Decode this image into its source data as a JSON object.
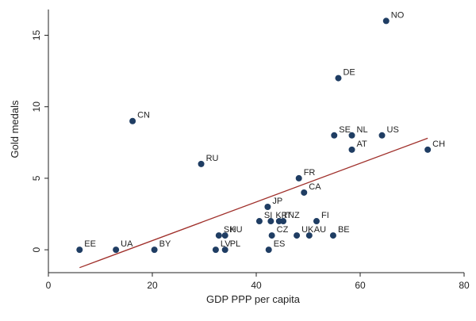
{
  "chart_data": {
    "type": "scatter",
    "title": "",
    "xlabel": "GDP PPP per capita",
    "ylabel": "Gold medals",
    "xlim": [
      0,
      80
    ],
    "ylim": [
      -1.6,
      16.8
    ],
    "xticks": [
      0,
      20,
      40,
      60,
      80
    ],
    "yticks": [
      0,
      5,
      10,
      15
    ],
    "xtick_labels": [
      "0",
      "20",
      "40",
      "60",
      "80"
    ],
    "ytick_labels": [
      "0",
      "5",
      "10",
      "15"
    ],
    "grid": false,
    "legend": "none",
    "points": [
      {
        "label": "NO",
        "x": 65.0,
        "y": 16
      },
      {
        "label": "DE",
        "x": 55.8,
        "y": 12
      },
      {
        "label": "CN",
        "x": 16.2,
        "y": 9
      },
      {
        "label": "SE",
        "x": 55.0,
        "y": 8
      },
      {
        "label": "NL",
        "x": 58.4,
        "y": 8
      },
      {
        "label": "US",
        "x": 64.2,
        "y": 8
      },
      {
        "label": "AT",
        "x": 58.4,
        "y": 7
      },
      {
        "label": "CH",
        "x": 73.0,
        "y": 7
      },
      {
        "label": "RU",
        "x": 29.4,
        "y": 6
      },
      {
        "label": "FR",
        "x": 48.2,
        "y": 5
      },
      {
        "label": "CA",
        "x": 49.2,
        "y": 4
      },
      {
        "label": "JP",
        "x": 42.2,
        "y": 3
      },
      {
        "label": "SI",
        "x": 40.6,
        "y": 2
      },
      {
        "label": "KR",
        "x": 42.8,
        "y": 2
      },
      {
        "label": "IT",
        "x": 44.4,
        "y": 2
      },
      {
        "label": "NZ",
        "x": 45.2,
        "y": 2
      },
      {
        "label": "FI",
        "x": 51.6,
        "y": 2
      },
      {
        "label": "SK",
        "x": 32.8,
        "y": 1
      },
      {
        "label": "HU",
        "x": 34.0,
        "y": 1
      },
      {
        "label": "CZ",
        "x": 43.0,
        "y": 1
      },
      {
        "label": "UK",
        "x": 47.8,
        "y": 1
      },
      {
        "label": "AU",
        "x": 50.2,
        "y": 1
      },
      {
        "label": "BE",
        "x": 54.8,
        "y": 1
      },
      {
        "label": "EE",
        "x": 6.0,
        "y": 0
      },
      {
        "label": "UA",
        "x": 13.0,
        "y": 0
      },
      {
        "label": "BY",
        "x": 20.4,
        "y": 0
      },
      {
        "label": "LV",
        "x": 32.2,
        "y": 0
      },
      {
        "label": "PL",
        "x": 34.0,
        "y": 0
      },
      {
        "label": "ES",
        "x": 42.4,
        "y": 0
      }
    ],
    "fit_line": {
      "type": "linear",
      "x": [
        6.0,
        73.0
      ],
      "y": [
        -1.25,
        7.8
      ]
    },
    "colors": {
      "marker": "#1f3d63",
      "fit_line": "#a0302b",
      "axis": "#222222"
    }
  }
}
